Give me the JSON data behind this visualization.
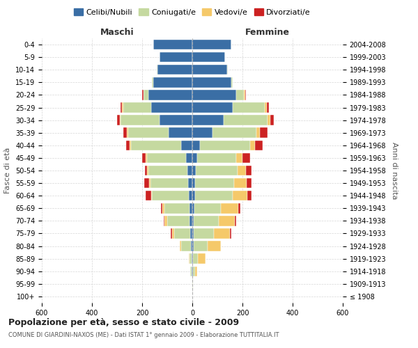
{
  "age_groups": [
    "100+",
    "95-99",
    "90-94",
    "85-89",
    "80-84",
    "75-79",
    "70-74",
    "65-69",
    "60-64",
    "55-59",
    "50-54",
    "45-49",
    "40-44",
    "35-39",
    "30-34",
    "25-29",
    "20-24",
    "15-19",
    "10-14",
    "5-9",
    "0-4"
  ],
  "birth_years": [
    "≤ 1908",
    "1909-1913",
    "1914-1918",
    "1919-1923",
    "1924-1928",
    "1929-1933",
    "1934-1938",
    "1939-1943",
    "1944-1948",
    "1949-1953",
    "1954-1958",
    "1959-1963",
    "1964-1968",
    "1969-1973",
    "1974-1978",
    "1979-1983",
    "1984-1988",
    "1989-1993",
    "1994-1998",
    "1999-2003",
    "2004-2008"
  ],
  "male": {
    "celibi": [
      0,
      0,
      2,
      2,
      5,
      8,
      10,
      10,
      15,
      18,
      20,
      25,
      45,
      95,
      130,
      165,
      175,
      155,
      140,
      130,
      155
    ],
    "coniugati": [
      0,
      0,
      5,
      10,
      40,
      65,
      90,
      100,
      145,
      150,
      155,
      155,
      200,
      160,
      155,
      110,
      20,
      5,
      2,
      0,
      0
    ],
    "vedovi": [
      0,
      0,
      0,
      2,
      5,
      8,
      10,
      10,
      5,
      5,
      5,
      5,
      5,
      5,
      5,
      5,
      0,
      0,
      0,
      0,
      0
    ],
    "divorziati": [
      0,
      0,
      0,
      0,
      0,
      5,
      5,
      5,
      20,
      20,
      10,
      15,
      15,
      15,
      10,
      5,
      5,
      0,
      0,
      0,
      0
    ]
  },
  "female": {
    "nubili": [
      0,
      0,
      2,
      2,
      5,
      5,
      5,
      8,
      10,
      12,
      15,
      20,
      30,
      80,
      125,
      160,
      175,
      155,
      140,
      130,
      155
    ],
    "coniugate": [
      0,
      2,
      8,
      20,
      55,
      80,
      100,
      105,
      150,
      155,
      165,
      155,
      200,
      175,
      175,
      130,
      30,
      5,
      2,
      0,
      0
    ],
    "vedove": [
      0,
      2,
      10,
      30,
      55,
      65,
      65,
      70,
      60,
      50,
      35,
      25,
      20,
      15,
      10,
      8,
      5,
      0,
      0,
      0,
      0
    ],
    "divorziate": [
      0,
      0,
      0,
      0,
      0,
      5,
      5,
      10,
      15,
      20,
      20,
      30,
      30,
      30,
      15,
      8,
      5,
      0,
      0,
      0,
      0
    ]
  },
  "colors": {
    "celibi_nubili": "#3a6ea5",
    "coniugati": "#c5d9a0",
    "vedovi": "#f5c96a",
    "divorziati": "#cc2222"
  },
  "title": "Popolazione per età, sesso e stato civile - 2009",
  "subtitle": "COMUNE DI GIARDINI-NAXOS (ME) - Dati ISTAT 1° gennaio 2009 - Elaborazione TUTTITALIA.IT",
  "xlabel_left": "Maschi",
  "xlabel_right": "Femmine",
  "ylabel_left": "Fasce di età",
  "ylabel_right": "Anni di nascita",
  "xlim": 600,
  "legend_labels": [
    "Celibi/Nubili",
    "Coniugati/e",
    "Vedovi/e",
    "Divorziati/e"
  ],
  "background_color": "#ffffff",
  "grid_color": "#cccccc"
}
